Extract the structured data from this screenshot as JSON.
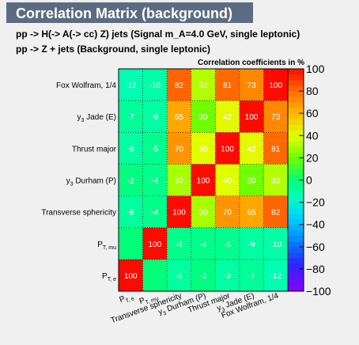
{
  "title": "Correlation Matrix (background)",
  "subtitles": [
    "pp -> H(-> A(-> cc)  Z) jets (Signal m_A=4.0 GeV, single leptonic)",
    "pp -> Z + jets (Background, single leptonic)"
  ],
  "chart_data": {
    "type": "heatmap",
    "variables": [
      {
        "base": "P",
        "sub": "T, e",
        "pre": ""
      },
      {
        "base": "P",
        "sub": "T, mu",
        "pre": ""
      },
      {
        "base": "Transverse sphericity",
        "sub": "",
        "pre": ""
      },
      {
        "base": " Durham (P)",
        "sub": "3",
        "pre": "y"
      },
      {
        "base": "Thrust major",
        "sub": "",
        "pre": ""
      },
      {
        "base": " Jade (E)",
        "sub": "3",
        "pre": "y"
      },
      {
        "base": "Fox Wolfram, 1/4",
        "sub": "",
        "pre": ""
      }
    ],
    "rows_bottom_to_top": [
      [
        100,
        null,
        -8,
        -2,
        -9,
        -7,
        -12
      ],
      [
        null,
        100,
        -4,
        -4,
        -5,
        -9,
        -10
      ],
      [
        -8,
        -4,
        100,
        30,
        70,
        65,
        82
      ],
      [
        -2,
        -4,
        30,
        100,
        40,
        20,
        32
      ],
      [
        -9,
        -5,
        70,
        40,
        100,
        42,
        81
      ],
      [
        -7,
        -9,
        65,
        20,
        42,
        100,
        73
      ],
      [
        -12,
        -10,
        82,
        32,
        81,
        73,
        100
      ]
    ],
    "colorbar_title": "Correlation coefficients in %",
    "zlim": [
      -100,
      100
    ],
    "colorbar_ticks": [
      100,
      80,
      60,
      40,
      20,
      0,
      -20,
      -40,
      -60,
      -80,
      -100
    ],
    "colorbar_tick_labels": [
      "100",
      "80",
      "60",
      "40",
      "20",
      "0",
      "−20",
      "−40",
      "−60",
      "−80",
      "−100"
    ]
  }
}
